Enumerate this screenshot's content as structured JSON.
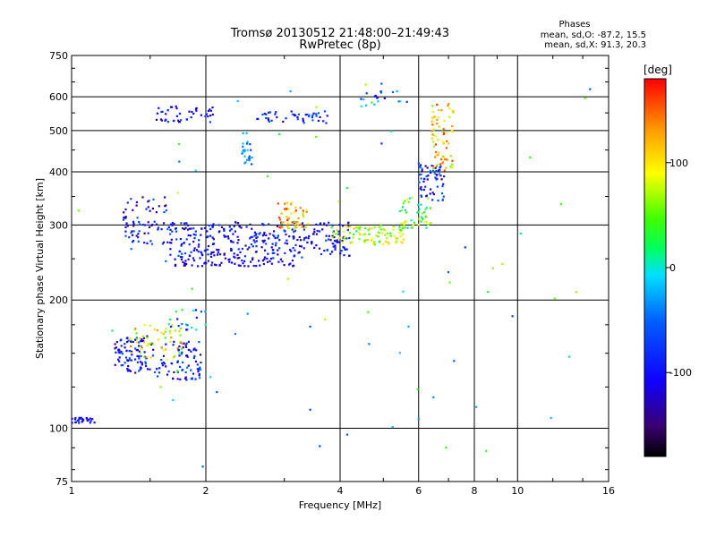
{
  "chart_data": {
    "type": "scatter",
    "title": "Tromsø 20130512 21:48:00–21:49:43",
    "subtitle": "RwPretec (8p)",
    "xlabel": "Frequency [MHz]",
    "ylabel": "Stationary phase Virtual Height [km]",
    "x_scale": "log",
    "y_scale": "log",
    "xlim": [
      1,
      16
    ],
    "ylim": [
      75,
      750
    ],
    "x_ticks": [
      1,
      2,
      4,
      6,
      8,
      10,
      16
    ],
    "x_gridlines": [
      1,
      2,
      4,
      6,
      8,
      10
    ],
    "y_ticks": [
      75,
      100,
      200,
      300,
      400,
      500,
      600,
      750
    ],
    "y_gridlines": [
      100,
      200,
      300,
      400,
      500,
      600
    ],
    "grid": true,
    "legend": {
      "header": "Phases",
      "line1": "mean, sd,O: -87.2, 15.5",
      "line2": "mean, sd,X:  91.3, 20.3"
    },
    "colorbar": {
      "label": "[deg]",
      "min": -180,
      "max": 180,
      "ticks": [
        100,
        0,
        -100
      ],
      "colormap": "rainbow"
    },
    "clusters": [
      {
        "x": [
          1.0,
          1.13
        ],
        "h": [
          103,
          106
        ],
        "phase": -110,
        "n": 30,
        "spread": 0.4
      },
      {
        "x": [
          1.25,
          1.5
        ],
        "h": [
          135,
          165
        ],
        "phase": -100,
        "n": 90,
        "spread": 0.6
      },
      {
        "x": [
          1.5,
          1.95
        ],
        "h": [
          130,
          160
        ],
        "phase": -95,
        "n": 90,
        "spread": 0.7
      },
      {
        "x": [
          1.35,
          1.8
        ],
        "h": [
          145,
          175
        ],
        "phase": 90,
        "n": 55,
        "spread": 0.7
      },
      {
        "x": [
          1.65,
          2.0
        ],
        "h": [
          170,
          190
        ],
        "phase": -40,
        "n": 20,
        "spread": 1.0
      },
      {
        "x": [
          1.3,
          1.7
        ],
        "h": [
          270,
          350
        ],
        "phase": -100,
        "n": 80,
        "spread": 0.7
      },
      {
        "x": [
          1.65,
          4.2
        ],
        "h": [
          250,
          305
        ],
        "phase": -100,
        "n": 320,
        "spread": 0.5
      },
      {
        "x": [
          1.7,
          3.2
        ],
        "h": [
          240,
          250
        ],
        "phase": -115,
        "n": 60,
        "spread": 0.2
      },
      {
        "x": [
          3.8,
          5.6
        ],
        "h": [
          270,
          300
        ],
        "phase": 80,
        "n": 90,
        "spread": 0.5
      },
      {
        "x": [
          2.9,
          3.4
        ],
        "h": [
          295,
          340
        ],
        "phase": 115,
        "n": 55,
        "spread": 0.7
      },
      {
        "x": [
          5.4,
          6.4
        ],
        "h": [
          295,
          350
        ],
        "phase": 40,
        "n": 50,
        "spread": 0.7
      },
      {
        "x": [
          6.0,
          6.9
        ],
        "h": [
          340,
          420
        ],
        "phase": -90,
        "n": 60,
        "spread": 0.7
      },
      {
        "x": [
          6.4,
          7.2
        ],
        "h": [
          400,
          580
        ],
        "phase": 110,
        "n": 70,
        "spread": 0.7
      },
      {
        "x": [
          1.55,
          2.1
        ],
        "h": [
          520,
          570
        ],
        "phase": -100,
        "n": 45,
        "spread": 0.6
      },
      {
        "x": [
          2.6,
          3.8
        ],
        "h": [
          520,
          555
        ],
        "phase": -90,
        "n": 45,
        "spread": 0.6
      },
      {
        "x": [
          2.4,
          2.55
        ],
        "h": [
          400,
          500
        ],
        "phase": -40,
        "n": 25,
        "spread": 0.4
      },
      {
        "x": [
          4.4,
          5.8
        ],
        "h": [
          570,
          620
        ],
        "phase": -60,
        "n": 20,
        "spread": 1.0
      },
      {
        "x": [
          1.0,
          15.0
        ],
        "h": [
          80,
          700
        ],
        "phase": 0,
        "n": 70,
        "spread": 1.0
      }
    ]
  }
}
